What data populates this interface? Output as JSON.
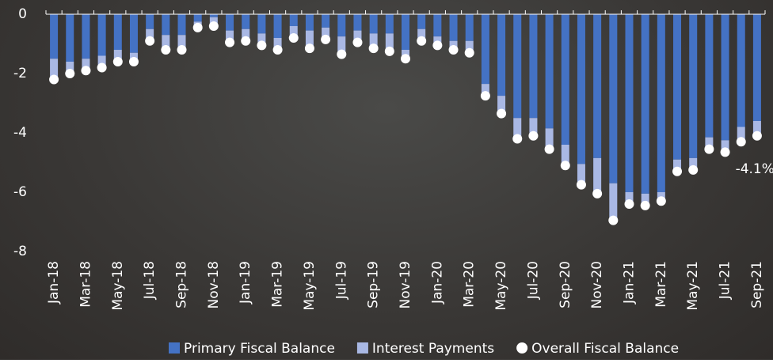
{
  "chart_data": {
    "type": "bar",
    "stacked": true,
    "categories": [
      "Jan-18",
      null,
      "Mar-18",
      null,
      "May-18",
      null,
      "Jul-18",
      null,
      "Sep-18",
      null,
      "Nov-18",
      null,
      "Jan-19",
      null,
      "Mar-19",
      null,
      "May-19",
      null,
      "Jul-19",
      null,
      "Sep-19",
      null,
      "Nov-19",
      null,
      "Jan-20",
      null,
      "Mar-20",
      null,
      "May-20",
      null,
      "Jul-20",
      null,
      "Sep-20",
      null,
      "Nov-20",
      null,
      "Jan-21",
      null,
      "Mar-21",
      null,
      "May-21",
      null,
      "Jul-21",
      null,
      "Sep-21"
    ],
    "series": [
      {
        "name": "Primary Fiscal Balance",
        "type": "bar",
        "color": "#4472c4",
        "values": [
          -1.5,
          -1.6,
          -1.5,
          -1.4,
          -1.2,
          -1.3,
          -0.5,
          -0.7,
          -0.7,
          -0.25,
          -0.1,
          -0.55,
          -0.5,
          -0.65,
          -0.8,
          -0.4,
          -0.55,
          -0.45,
          -0.75,
          -0.55,
          -0.65,
          -0.65,
          -1.2,
          -0.5,
          -0.75,
          -0.9,
          -0.9,
          -2.35,
          -2.75,
          -3.5,
          -3.5,
          -3.85,
          -4.4,
          -5.05,
          -4.85,
          -5.7,
          -6.0,
          -6.05,
          -6.0,
          -4.9,
          -4.85,
          -4.15,
          -4.25,
          -3.8,
          -3.6
        ]
      },
      {
        "name": "Interest Payments",
        "type": "bar",
        "color": "#a9b8e4",
        "values": [
          -0.7,
          -0.4,
          -0.4,
          -0.4,
          -0.4,
          -0.3,
          -0.4,
          -0.5,
          -0.5,
          -0.2,
          -0.3,
          -0.4,
          -0.4,
          -0.4,
          -0.4,
          -0.4,
          -0.6,
          -0.4,
          -0.6,
          -0.4,
          -0.5,
          -0.6,
          -0.3,
          -0.4,
          -0.3,
          -0.3,
          -0.4,
          -0.4,
          -0.6,
          -0.7,
          -0.6,
          -0.7,
          -0.7,
          -0.7,
          -1.2,
          -1.25,
          -0.4,
          -0.4,
          -0.3,
          -0.4,
          -0.4,
          -0.4,
          -0.4,
          -0.5,
          -0.5
        ]
      },
      {
        "name": "Overall Fiscal Balance",
        "type": "scatter",
        "color": "#ffffff",
        "values": [
          -2.2,
          -2.0,
          -1.9,
          -1.8,
          -1.6,
          -1.6,
          -0.9,
          -1.2,
          -1.2,
          -0.45,
          -0.4,
          -0.95,
          -0.9,
          -1.05,
          -1.2,
          -0.8,
          -1.15,
          -0.85,
          -1.35,
          -0.95,
          -1.15,
          -1.25,
          -1.5,
          -0.9,
          -1.05,
          -1.2,
          -1.3,
          -2.75,
          -3.35,
          -4.2,
          -4.1,
          -4.55,
          -5.1,
          -5.75,
          -6.05,
          -6.95,
          -6.4,
          -6.45,
          -6.3,
          -5.3,
          -5.25,
          -4.55,
          -4.65,
          -4.3,
          -4.1
        ],
        "value_labels": [
          null,
          null,
          null,
          null,
          null,
          null,
          null,
          null,
          null,
          null,
          null,
          null,
          null,
          null,
          null,
          null,
          null,
          null,
          null,
          null,
          null,
          null,
          null,
          null,
          null,
          null,
          null,
          null,
          null,
          null,
          null,
          null,
          null,
          null,
          null,
          null,
          null,
          null,
          null,
          null,
          null,
          null,
          null,
          null,
          "-4.1%"
        ]
      }
    ],
    "ylim": [
      -8,
      0
    ],
    "yticks": [
      0,
      -2,
      -4,
      -6,
      -8
    ]
  }
}
